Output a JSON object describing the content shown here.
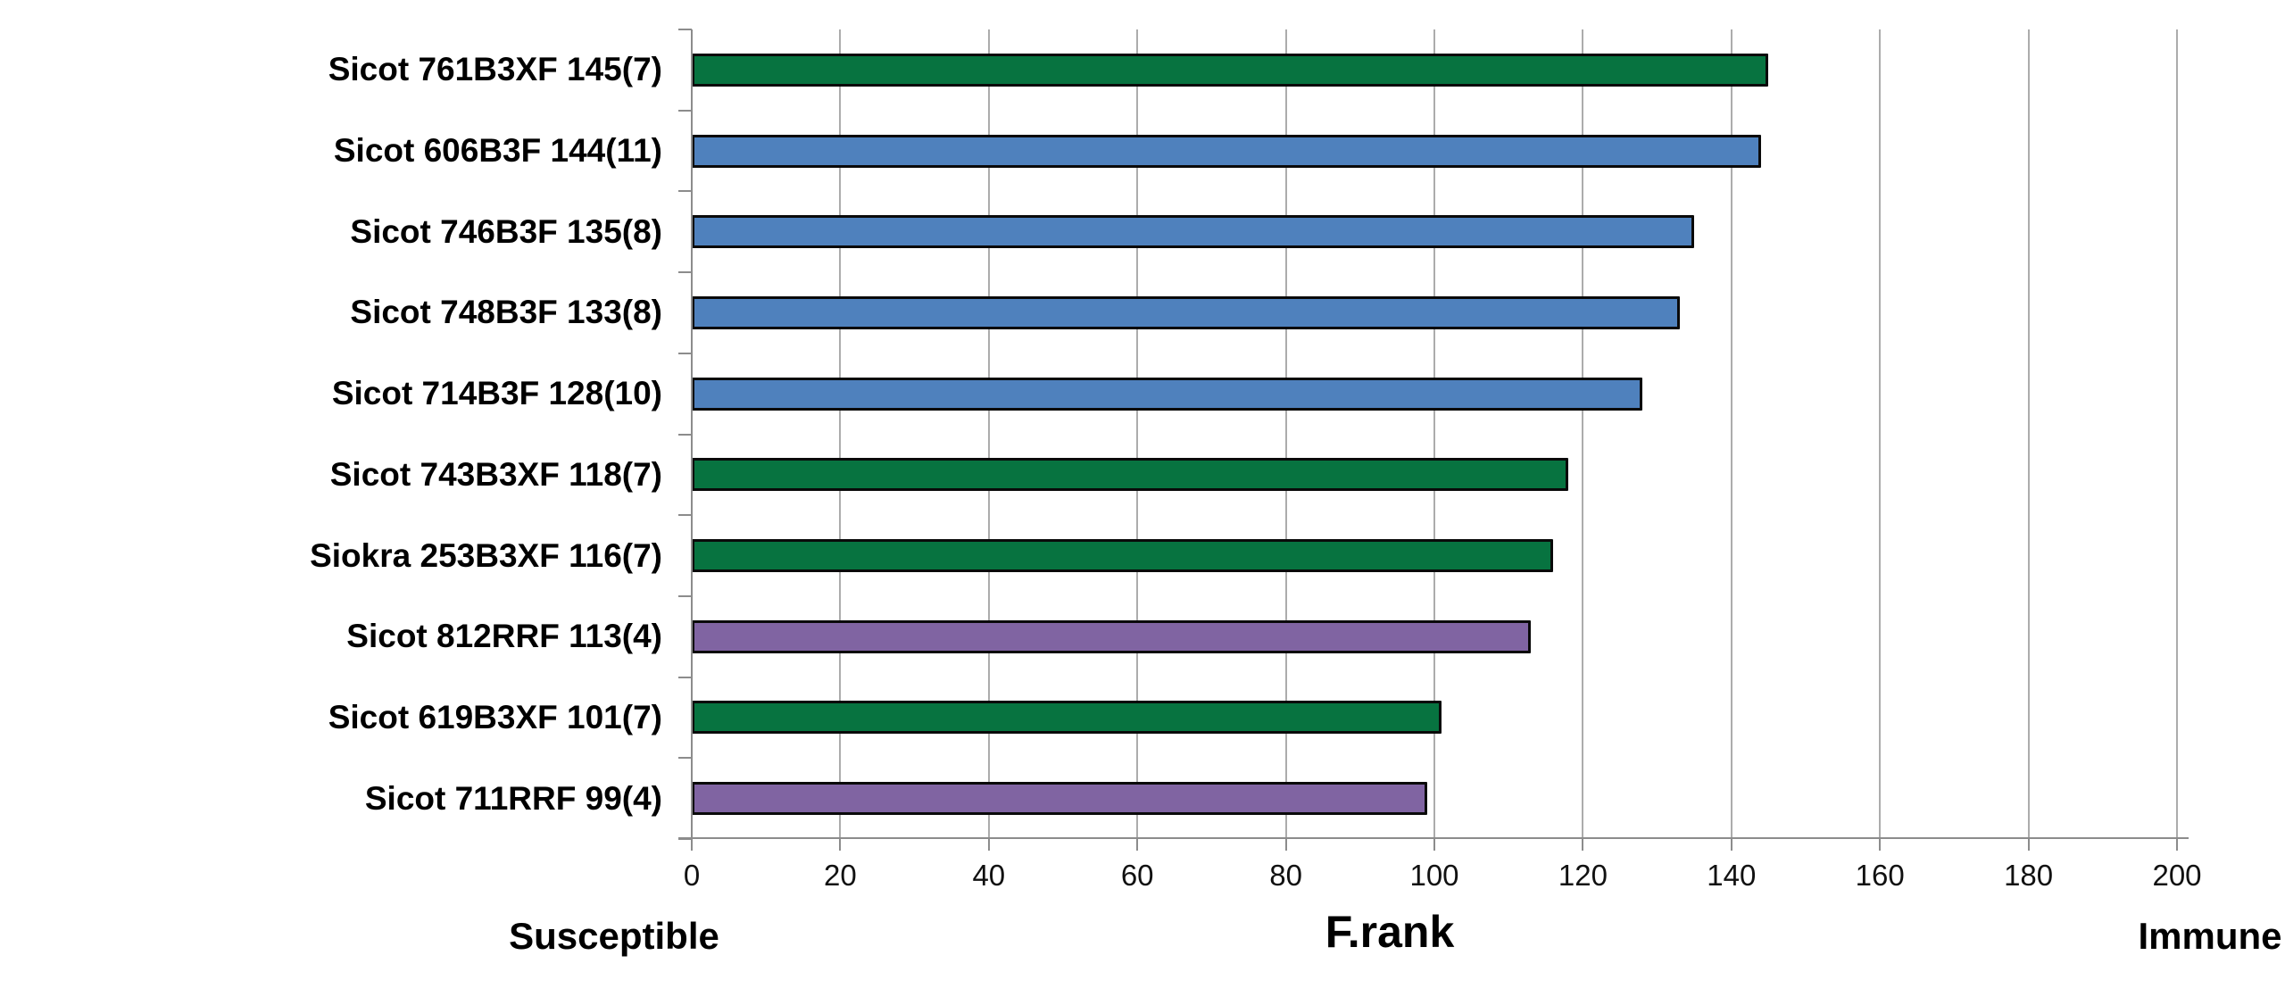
{
  "chart_data": {
    "type": "bar",
    "orientation": "horizontal",
    "title": "",
    "xlabel": "F.rank",
    "x_axis_left_caption": "Susceptible",
    "x_axis_right_caption": "Immune",
    "xlim": [
      0,
      200
    ],
    "xticks": [
      0,
      20,
      40,
      60,
      80,
      100,
      120,
      140,
      160,
      180,
      200
    ],
    "grid": true,
    "legend": "none",
    "categories": [
      "Sicot 761B3XF 145(7)",
      "Sicot 606B3F 144(11)",
      "Sicot 746B3F 135(8)",
      "Sicot 748B3F 133(8)",
      "Sicot 714B3F 128(10)",
      "Sicot 743B3XF 118(7)",
      "Siokra 253B3XF 116(7)",
      "Sicot 812RRF 113(4)",
      "Sicot 619B3XF 101(7)",
      "Sicot 711RRF 99(4)"
    ],
    "values": [
      145,
      144,
      135,
      133,
      128,
      118,
      116,
      113,
      101,
      99
    ],
    "bar_colors": [
      "#077340",
      "#4f81bd",
      "#4f81bd",
      "#4f81bd",
      "#4f81bd",
      "#077340",
      "#077340",
      "#8064a2",
      "#077340",
      "#8064a2"
    ],
    "colors": {
      "green": "#077340",
      "blue": "#4f81bd",
      "purple": "#8064a2",
      "bar_border": "#0a0a0a",
      "gridline": "#acacac",
      "axis": "#8c8c8c",
      "text": "#000000"
    }
  }
}
